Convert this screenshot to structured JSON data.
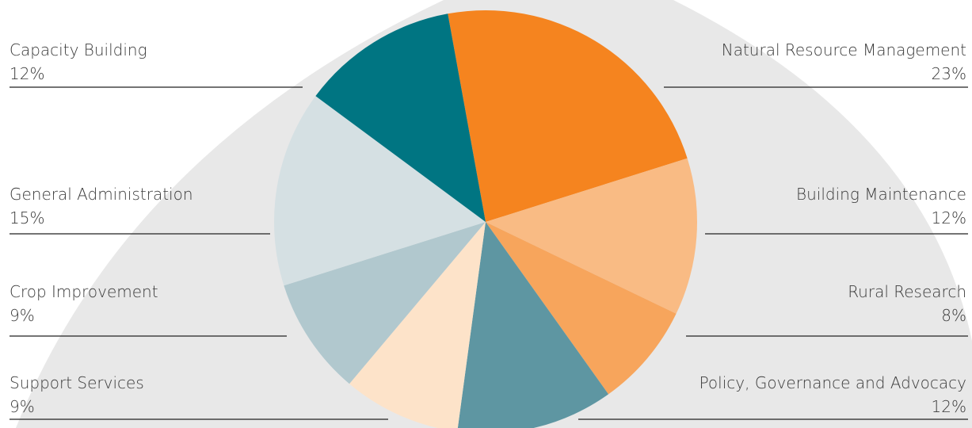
{
  "chart_data": {
    "type": "pie",
    "categories": [
      "Natural Resource Management",
      "Building Maintenance",
      "Rural Research",
      "Policy, Governance and Advocacy",
      "Support Services",
      "Crop Improvement",
      "General Administration",
      "Capacity Building"
    ],
    "values": [
      23,
      12,
      8,
      12,
      9,
      9,
      15,
      12
    ],
    "value_labels": [
      "23%",
      "12%",
      "8%",
      "12%",
      "9%",
      "9%",
      "15%",
      "12%"
    ],
    "colors": [
      "#f5841f",
      "#f9bb84",
      "#f7a55c",
      "#5e96a2",
      "#fde3c9",
      "#b1c8ce",
      "#d5e0e3",
      "#007582"
    ]
  }
}
